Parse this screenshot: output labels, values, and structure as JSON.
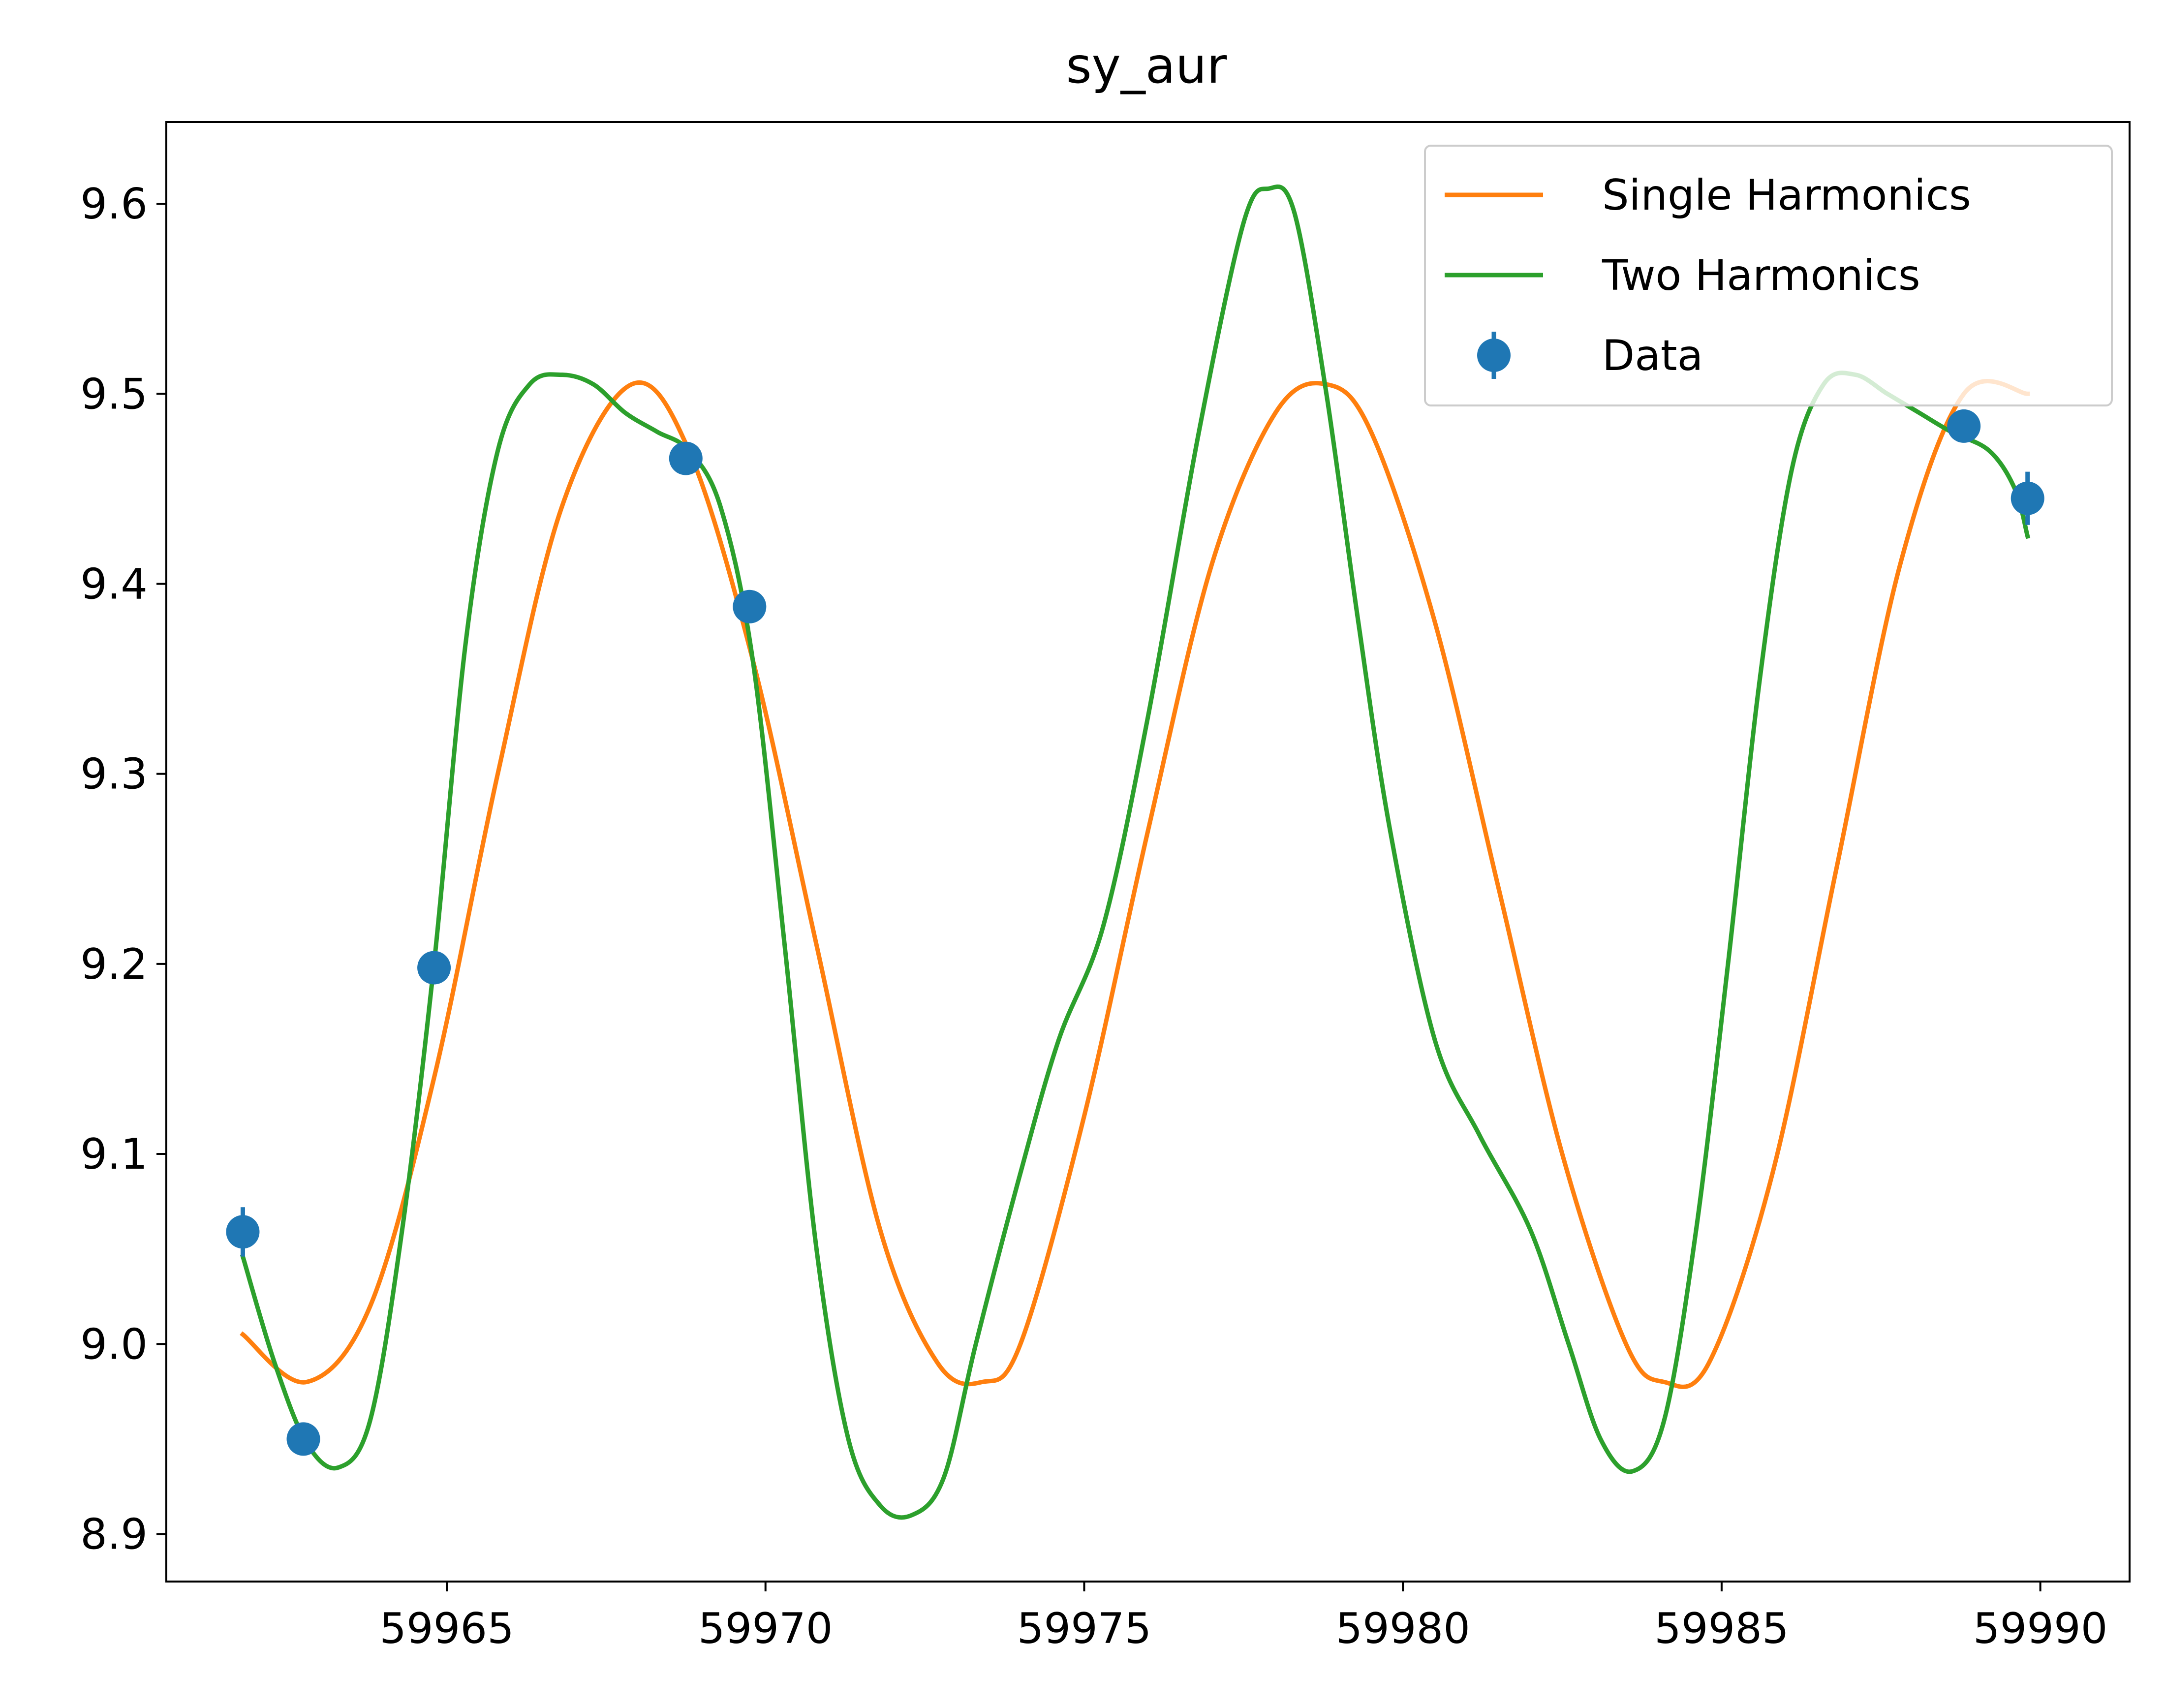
{
  "chart_data": {
    "type": "line",
    "title": "sy_aur",
    "xlabel": "",
    "ylabel": "",
    "xlim": [
      59960.6,
      59991.4
    ],
    "ylim": [
      8.875,
      9.643
    ],
    "x_ticks": [
      59965,
      59970,
      59975,
      59980,
      59985,
      59990
    ],
    "x_tick_labels": [
      "59965",
      "59970",
      "59975",
      "59980",
      "59985",
      "59990"
    ],
    "y_ticks": [
      8.9,
      9.0,
      9.1,
      9.2,
      9.3,
      9.4,
      9.5,
      9.6
    ],
    "y_tick_labels": [
      "8.9",
      "9.0",
      "9.1",
      "9.2",
      "9.3",
      "9.4",
      "9.5",
      "9.6"
    ],
    "grid": false,
    "legend_position": "upper right",
    "series": [
      {
        "name": "Single Harmonics",
        "kind": "line",
        "color": "#ff7f0e",
        "points": [
          [
            59961.8,
            9.005
          ],
          [
            59962.8,
            8.98
          ],
          [
            59963.8,
            9.02
          ],
          [
            59964.8,
            9.14
          ],
          [
            59965.8,
            9.3
          ],
          [
            59966.8,
            9.44
          ],
          [
            59967.9,
            9.505
          ],
          [
            59968.8,
            9.47
          ],
          [
            59969.8,
            9.36
          ],
          [
            59970.8,
            9.21
          ],
          [
            59971.8,
            9.06
          ],
          [
            59972.7,
            8.99
          ],
          [
            59973.4,
            8.98
          ],
          [
            59974.0,
            9.0
          ],
          [
            59975.0,
            9.12
          ],
          [
            59976.0,
            9.27
          ],
          [
            59977.0,
            9.41
          ],
          [
            59978.0,
            9.49
          ],
          [
            59978.8,
            9.505
          ],
          [
            59979.5,
            9.48
          ],
          [
            59980.5,
            9.38
          ],
          [
            59981.5,
            9.24
          ],
          [
            59982.5,
            9.1
          ],
          [
            59983.5,
            9.0
          ],
          [
            59984.1,
            8.98
          ],
          [
            59984.8,
            8.99
          ],
          [
            59985.8,
            9.09
          ],
          [
            59986.8,
            9.25
          ],
          [
            59987.8,
            9.41
          ],
          [
            59988.8,
            9.5
          ],
          [
            59989.8,
            9.5
          ]
        ]
      },
      {
        "name": "Two Harmonics",
        "kind": "line",
        "color": "#2ca02c",
        "points": [
          [
            59961.8,
            9.046
          ],
          [
            59962.3,
            8.99
          ],
          [
            59962.8,
            8.948
          ],
          [
            59963.3,
            8.935
          ],
          [
            59963.8,
            8.96
          ],
          [
            59964.3,
            9.06
          ],
          [
            59964.8,
            9.2
          ],
          [
            59965.3,
            9.37
          ],
          [
            59965.8,
            9.47
          ],
          [
            59966.3,
            9.505
          ],
          [
            59966.8,
            9.51
          ],
          [
            59967.3,
            9.505
          ],
          [
            59967.8,
            9.49
          ],
          [
            59968.3,
            9.48
          ],
          [
            59968.8,
            9.47
          ],
          [
            59969.3,
            9.44
          ],
          [
            59969.8,
            9.36
          ],
          [
            59970.3,
            9.21
          ],
          [
            59970.8,
            9.05
          ],
          [
            59971.3,
            8.95
          ],
          [
            59971.8,
            8.915
          ],
          [
            59972.3,
            8.91
          ],
          [
            59972.8,
            8.93
          ],
          [
            59973.3,
            9.0
          ],
          [
            59974.0,
            9.09
          ],
          [
            59974.6,
            9.16
          ],
          [
            59975.3,
            9.22
          ],
          [
            59976.0,
            9.33
          ],
          [
            59976.8,
            9.48
          ],
          [
            59977.5,
            9.59
          ],
          [
            59977.9,
            9.608
          ],
          [
            59978.3,
            9.595
          ],
          [
            59978.8,
            9.5
          ],
          [
            59979.3,
            9.38
          ],
          [
            59979.8,
            9.27
          ],
          [
            59980.5,
            9.16
          ],
          [
            59981.2,
            9.11
          ],
          [
            59982.0,
            9.06
          ],
          [
            59982.6,
            9.0
          ],
          [
            59983.1,
            8.95
          ],
          [
            59983.6,
            8.933
          ],
          [
            59984.1,
            8.96
          ],
          [
            59984.6,
            9.06
          ],
          [
            59985.1,
            9.2
          ],
          [
            59985.6,
            9.35
          ],
          [
            59986.1,
            9.46
          ],
          [
            59986.6,
            9.505
          ],
          [
            59987.1,
            9.51
          ],
          [
            59987.6,
            9.5
          ],
          [
            59988.1,
            9.49
          ],
          [
            59988.6,
            9.48
          ],
          [
            59989.2,
            9.47
          ],
          [
            59989.6,
            9.45
          ],
          [
            59989.8,
            9.425
          ]
        ]
      },
      {
        "name": "Data",
        "kind": "errorbar",
        "color": "#1f77b4",
        "points": [
          {
            "x": 59961.8,
            "y": 9.059,
            "err": 0.013
          },
          {
            "x": 59962.75,
            "y": 8.95,
            "err": 0.004
          },
          {
            "x": 59964.8,
            "y": 9.198,
            "err": 0.004
          },
          {
            "x": 59968.75,
            "y": 9.466,
            "err": 0.004
          },
          {
            "x": 59969.75,
            "y": 9.388,
            "err": 0.004
          },
          {
            "x": 59988.8,
            "y": 9.483,
            "err": 0.004
          },
          {
            "x": 59989.8,
            "y": 9.445,
            "err": 0.014
          }
        ]
      }
    ]
  }
}
